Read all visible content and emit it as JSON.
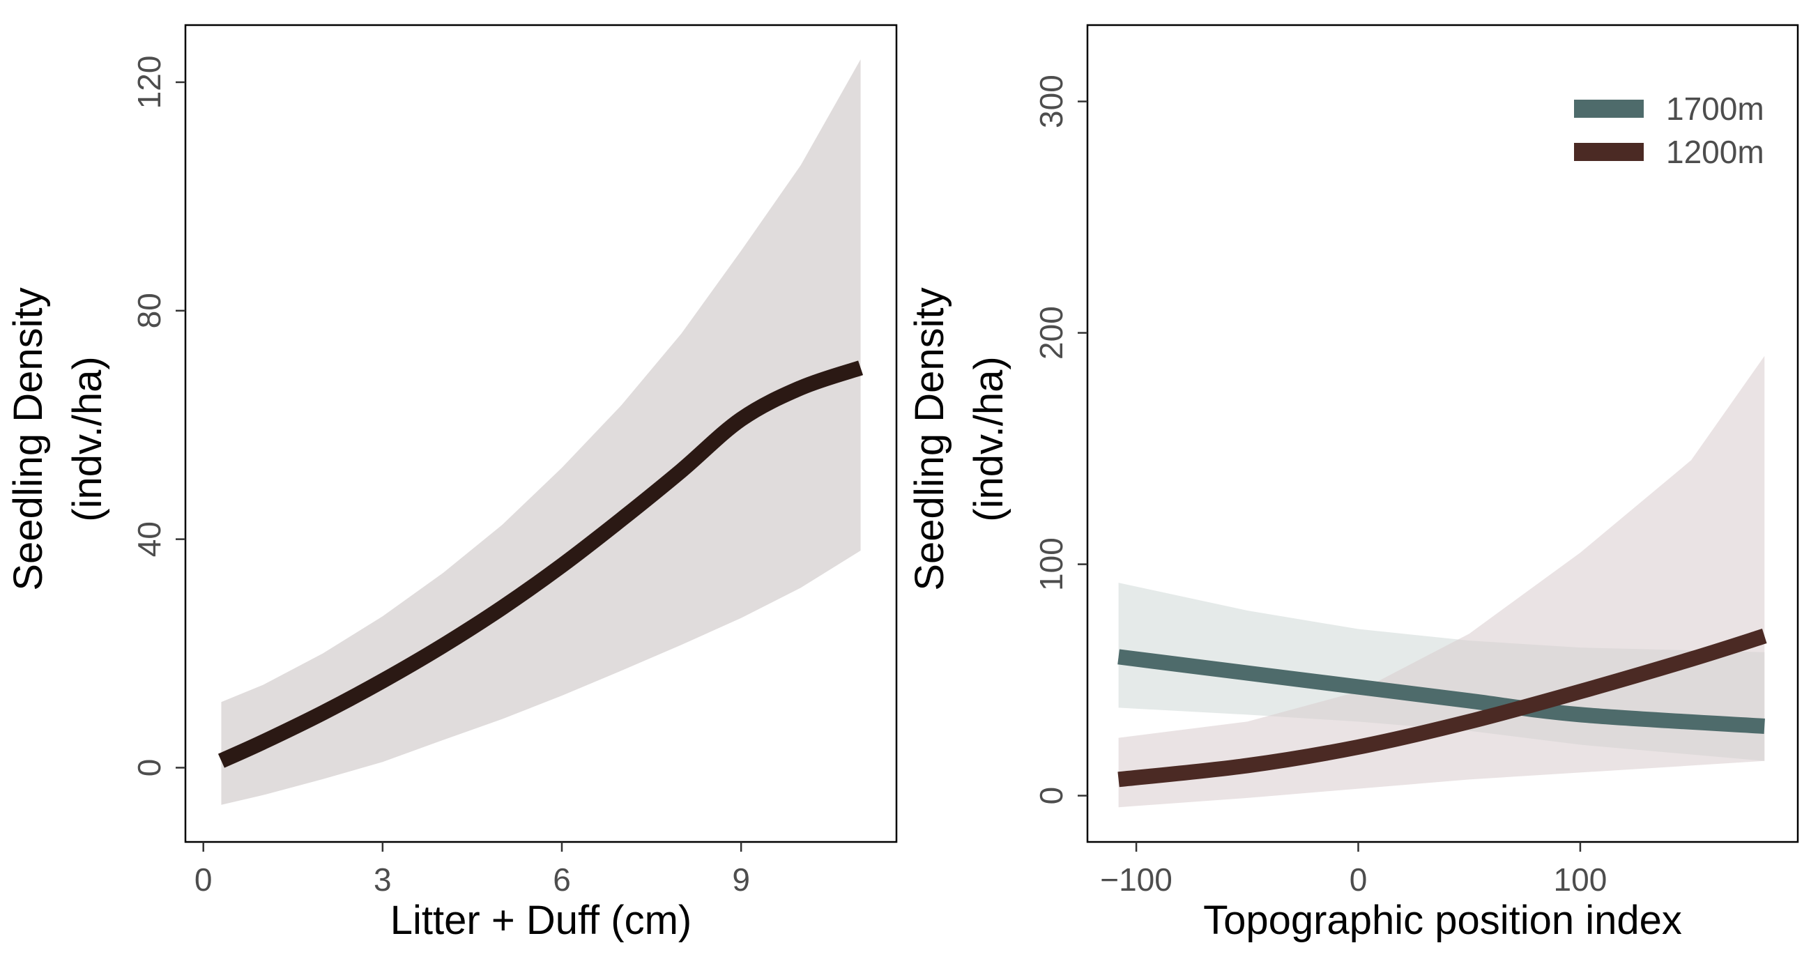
{
  "chart_data": [
    {
      "type": "line",
      "title": "",
      "xlabel": "Litter + Duff (cm)",
      "ylabel_lines": [
        "Seedling Density",
        "(indv./ha)"
      ],
      "xlim": [
        -0.3,
        11.6
      ],
      "ylim": [
        -13,
        130
      ],
      "xticks": [
        0,
        3,
        6,
        9
      ],
      "yticks": [
        0,
        40,
        80,
        120
      ],
      "grid": false,
      "series": [
        {
          "color": "#2b1914",
          "band_color": "#e0dcdc",
          "points": [
            {
              "x": 0.3,
              "y": 1.2,
              "lo": -6.5,
              "hi": 11.5
            },
            {
              "x": 1.0,
              "y": 4.5,
              "lo": -4.8,
              "hi": 14.5
            },
            {
              "x": 2.0,
              "y": 9.6,
              "lo": -2.0,
              "hi": 20.0
            },
            {
              "x": 3.0,
              "y": 15.2,
              "lo": 1.0,
              "hi": 26.5
            },
            {
              "x": 4.0,
              "y": 21.3,
              "lo": 4.8,
              "hi": 34.0
            },
            {
              "x": 5.0,
              "y": 28.0,
              "lo": 8.5,
              "hi": 42.5
            },
            {
              "x": 6.0,
              "y": 35.4,
              "lo": 12.6,
              "hi": 52.5
            },
            {
              "x": 7.0,
              "y": 43.5,
              "lo": 17.0,
              "hi": 63.5
            },
            {
              "x": 8.0,
              "y": 52.0,
              "lo": 21.5,
              "hi": 76.0
            },
            {
              "x": 9.0,
              "y": 61.0,
              "lo": 26.2,
              "hi": 90.5
            },
            {
              "x": 10.0,
              "y": 66.5,
              "lo": 31.5,
              "hi": 105.5
            },
            {
              "x": 11.0,
              "y": 70.0,
              "lo": 38.0,
              "hi": 124.0
            }
          ]
        }
      ]
    },
    {
      "type": "line",
      "title": "",
      "xlabel": "Topographic position index",
      "ylabel_lines": [
        "Seedling Density",
        "(indv./ha)"
      ],
      "xlim": [
        -122,
        198
      ],
      "ylim": [
        -20,
        333
      ],
      "xticks": [
        -100,
        0,
        100
      ],
      "yticks": [
        0,
        100,
        200,
        300
      ],
      "grid": false,
      "legend_position": "top-right",
      "series": [
        {
          "name": "1700m",
          "color": "#4e6b6b",
          "band_color": "#c5d0cf",
          "band_opacity": 0.45,
          "points": [
            {
              "x": -108,
              "y": 60,
              "lo": 38,
              "hi": 92
            },
            {
              "x": -50,
              "y": 53,
              "lo": 35,
              "hi": 80
            },
            {
              "x": 0,
              "y": 47,
              "lo": 32,
              "hi": 72
            },
            {
              "x": 50,
              "y": 41,
              "lo": 28,
              "hi": 67
            },
            {
              "x": 100,
              "y": 35,
              "lo": 22,
              "hi": 64
            },
            {
              "x": 183,
              "y": 30,
              "lo": 15,
              "hi": 62
            }
          ]
        },
        {
          "name": "1200m",
          "color": "#4b2a24",
          "band_color": "#d8ccce",
          "band_opacity": 0.55,
          "points": [
            {
              "x": -108,
              "y": 7,
              "lo": -5,
              "hi": 25
            },
            {
              "x": -50,
              "y": 13,
              "lo": -1,
              "hi": 32
            },
            {
              "x": 0,
              "y": 21,
              "lo": 3,
              "hi": 45
            },
            {
              "x": 50,
              "y": 32,
              "lo": 7,
              "hi": 70
            },
            {
              "x": 100,
              "y": 45,
              "lo": 10,
              "hi": 105
            },
            {
              "x": 150,
              "y": 59,
              "lo": 13,
              "hi": 145
            },
            {
              "x": 183,
              "y": 69,
              "lo": 15,
              "hi": 190
            }
          ]
        }
      ]
    }
  ]
}
